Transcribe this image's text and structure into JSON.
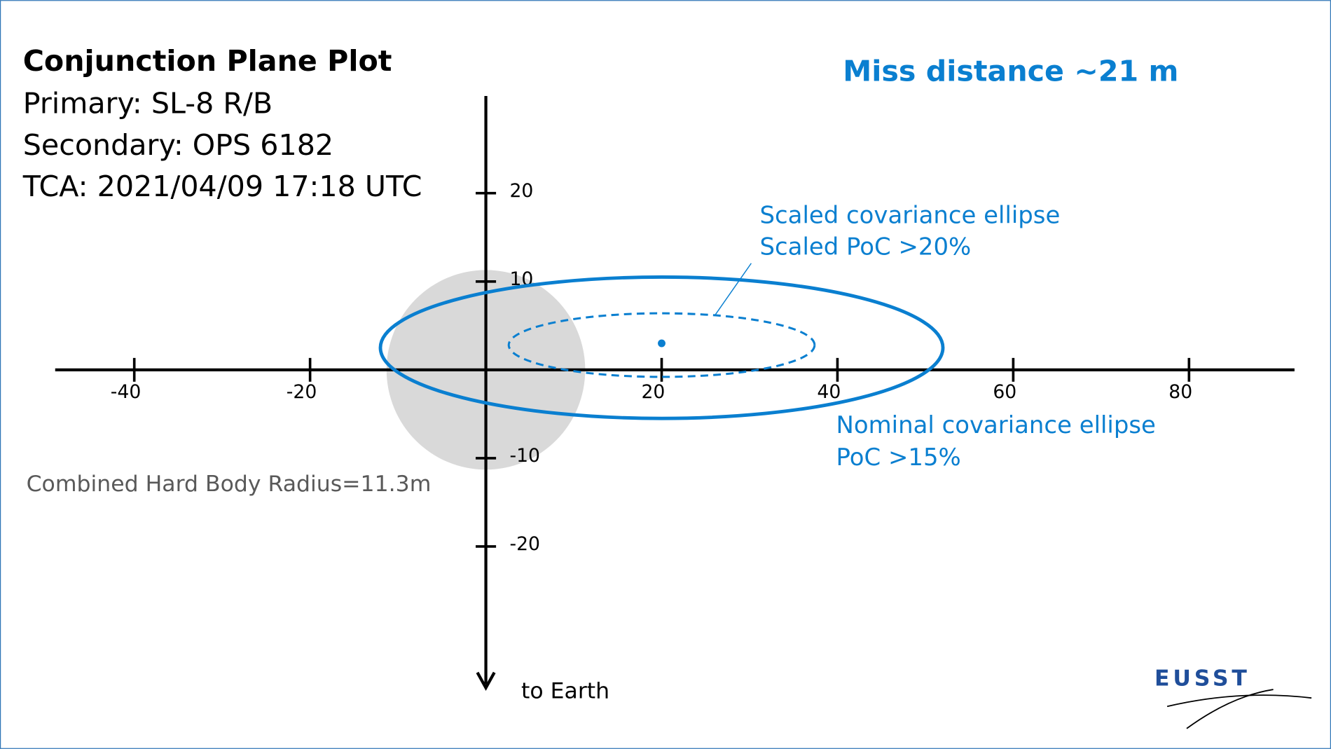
{
  "chart_data": {
    "type": "scatter",
    "title": "Conjunction Plane Plot",
    "info": [
      "Primary: SL-8 R/B",
      "Secondary: OPS 6182",
      "TCA: 2021/04/09 17:18 UTC"
    ],
    "headline": "Miss distance ~21 m",
    "y_axis_label": "to Earth",
    "color": "#0a7fd0",
    "xlim": [
      -49,
      92
    ],
    "ylim": [
      -36,
      31
    ],
    "xticks": [
      -40,
      -20,
      20,
      40,
      60,
      80
    ],
    "yticks": [
      20,
      10,
      -10,
      -20
    ],
    "x": [
      20
    ],
    "y": [
      3
    ],
    "ellipses": [
      {
        "name": "Nominal covariance ellipse",
        "annotation": "PoC >15%",
        "style": "solid",
        "cx": 20,
        "cy": 2.5,
        "rx": 32,
        "ry": 8
      },
      {
        "name": "Scaled covariance ellipse",
        "annotation": "Scaled PoC >20%",
        "style": "dashed",
        "cx": 20,
        "cy": 2.8,
        "rx": 17.4,
        "ry": 3.6
      }
    ],
    "hard_body": {
      "label": "Combined Hard Body Radius=11.3m",
      "x": 0,
      "y": 0,
      "radius": 11.3,
      "color": "#d9d9d9"
    },
    "logo": "EUSST"
  }
}
